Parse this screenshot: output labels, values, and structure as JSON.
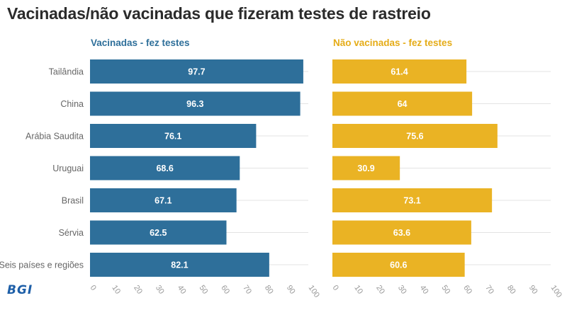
{
  "title": "Vacinadas/não vacinadas que fizeram testes de rastreio",
  "logo": "BGI",
  "colors": {
    "vaccinated": "#2e6f9a",
    "unvaccinated": "#eab324",
    "title": "#2b2b2b"
  },
  "chart_data": {
    "type": "bar",
    "orientation": "horizontal",
    "title": "Vacinadas/não vacinadas que fizeram testes de rastreio",
    "categories": [
      "Tailândia",
      "China",
      "Arábia Saudita",
      "Uruguai",
      "Brasil",
      "Sérvia",
      "Seis países e regiões"
    ],
    "xlim": [
      0,
      100
    ],
    "xticks": [
      0,
      10,
      20,
      30,
      40,
      50,
      60,
      70,
      80,
      90,
      100
    ],
    "panels": [
      {
        "name": "Vacinadas - fez testes",
        "color": "#2e6f9a",
        "values": [
          97.7,
          96.3,
          76.1,
          68.6,
          67.1,
          62.5,
          82.1
        ]
      },
      {
        "name": "Não vacinadas - fez testes",
        "color": "#eab324",
        "values": [
          61.4,
          64,
          75.6,
          30.9,
          73.1,
          63.6,
          60.6
        ]
      }
    ]
  }
}
